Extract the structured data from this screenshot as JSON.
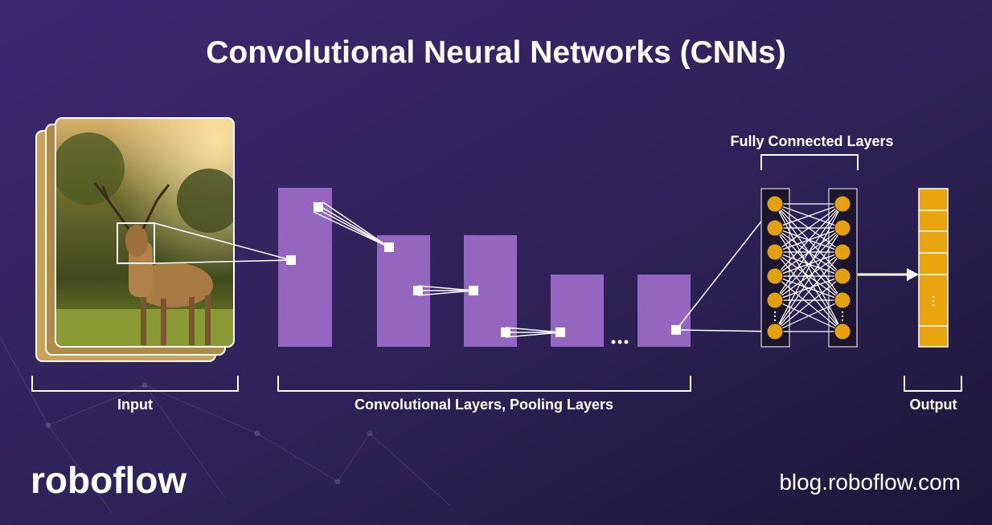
{
  "header": {
    "title": "Convolutional Neural Networks (CNNs)"
  },
  "labels": {
    "fully_connected": "Fully Connected Layers",
    "input": "Input",
    "conv": "Convolutional Layers, Pooling Layers",
    "output": "Output"
  },
  "footer": {
    "brand": "roboflow",
    "url": "blog.roboflow.com"
  }
}
